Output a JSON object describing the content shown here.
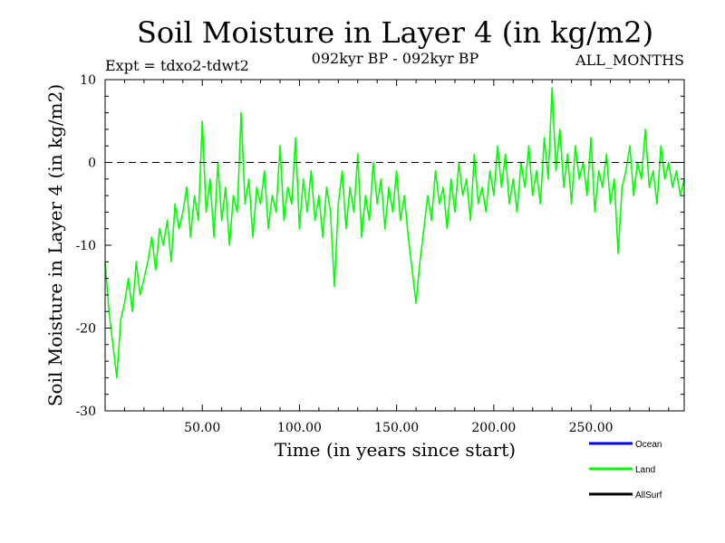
{
  "chart_data": {
    "type": "line",
    "title": "Soil Moisture in Layer 4 (in kg/m2)",
    "subtitle_left": "Expt = tdxo2-tdwt2",
    "subtitle_center": "092kyr BP - 092kyr BP",
    "subtitle_right": "ALL_MONTHS",
    "xlabel": "Time (in years since start)",
    "ylabel": "Soil Moisture in Layer 4 (in kg/m2)",
    "xlim": [
      0,
      298
    ],
    "ylim": [
      -30,
      10
    ],
    "x_ticks": [
      50,
      100,
      150,
      200,
      250
    ],
    "x_tick_labels": [
      "50.00",
      "100.00",
      "150.00",
      "200.00",
      "250.00"
    ],
    "y_ticks": [
      -30,
      -20,
      -10,
      0,
      10
    ],
    "y_tick_labels": [
      "-30",
      "-20",
      "-10",
      "0",
      "10"
    ],
    "reference_line": 0,
    "grid": false,
    "legend_position": "bottom-right",
    "series": [
      {
        "name": "Ocean",
        "color": "#0000ff",
        "x": [],
        "y": []
      },
      {
        "name": "Land",
        "color": "#00ff00",
        "x": [
          0,
          2,
          4,
          6,
          8,
          10,
          12,
          14,
          16,
          18,
          20,
          22,
          24,
          26,
          28,
          30,
          32,
          34,
          36,
          38,
          40,
          42,
          44,
          46,
          48,
          50,
          52,
          54,
          56,
          58,
          60,
          62,
          64,
          66,
          68,
          70,
          72,
          74,
          76,
          78,
          80,
          82,
          84,
          86,
          88,
          90,
          92,
          94,
          96,
          98,
          100,
          102,
          104,
          106,
          108,
          110,
          112,
          114,
          116,
          118,
          120,
          122,
          124,
          126,
          128,
          130,
          132,
          134,
          136,
          138,
          140,
          142,
          144,
          146,
          148,
          150,
          152,
          154,
          156,
          158,
          160,
          162,
          164,
          166,
          168,
          170,
          172,
          174,
          176,
          178,
          180,
          182,
          184,
          186,
          188,
          190,
          192,
          194,
          196,
          198,
          200,
          202,
          204,
          206,
          208,
          210,
          212,
          214,
          216,
          218,
          220,
          222,
          224,
          226,
          228,
          230,
          232,
          234,
          236,
          238,
          240,
          242,
          244,
          246,
          248,
          250,
          252,
          254,
          256,
          258,
          260,
          262,
          264,
          266,
          268,
          270,
          272,
          274,
          276,
          278,
          280,
          282,
          284,
          286,
          288,
          290,
          292,
          294,
          296,
          298
        ],
        "y": [
          -12,
          -18,
          -22,
          -26,
          -19,
          -17,
          -14,
          -18,
          -12,
          -16,
          -14,
          -12,
          -9,
          -13,
          -8,
          -10,
          -7,
          -12,
          -5,
          -8,
          -6,
          -3,
          -9,
          -4,
          -7,
          5,
          -6,
          -2,
          -9,
          0,
          -7,
          -3,
          -10,
          -4,
          -6,
          6,
          -5,
          -2,
          -9,
          -3,
          -5,
          -1,
          -8,
          -4,
          -6,
          2,
          -7,
          -3,
          -5,
          3,
          -8,
          -2,
          -6,
          -1,
          -7,
          -4,
          -9,
          -3,
          -6,
          -15,
          -5,
          -1,
          -8,
          -3,
          -6,
          1,
          -9,
          -4,
          -7,
          0,
          -5,
          -2,
          -8,
          -3,
          -6,
          -1,
          -7,
          -4,
          -9,
          -13,
          -17,
          -12,
          -8,
          -4,
          -7,
          -1,
          -5,
          -3,
          -8,
          -2,
          -6,
          0,
          -4,
          -2,
          -7,
          1,
          -5,
          -3,
          -6,
          -1,
          -4,
          2,
          -3,
          1,
          -5,
          -2,
          -6,
          0,
          -3,
          2,
          -4,
          -1,
          -5,
          3,
          -2,
          9,
          -1,
          4,
          -3,
          1,
          -5,
          2,
          -2,
          0,
          -4,
          3,
          -6,
          -1,
          -3,
          1,
          -5,
          -2,
          -11,
          -3,
          -1,
          2,
          -4,
          0,
          -2,
          4,
          -3,
          -1,
          -5,
          2,
          -2,
          0,
          -3,
          -1,
          -4,
          -2
        ]
      },
      {
        "name": "AllSurf",
        "color": "#000000",
        "x": [],
        "y": []
      }
    ]
  }
}
